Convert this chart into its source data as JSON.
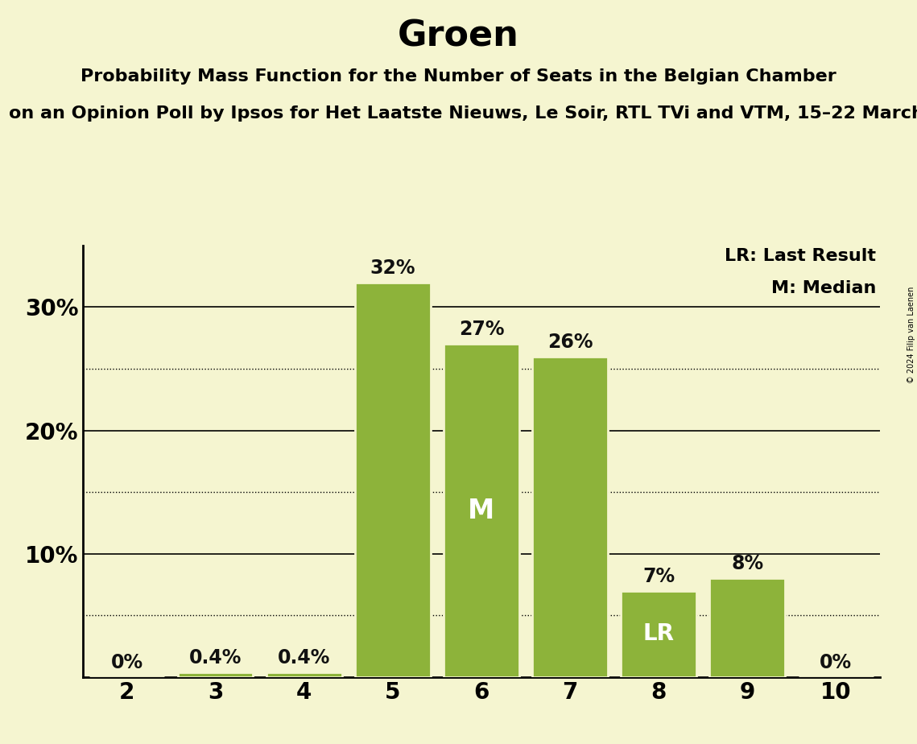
{
  "title": "Groen",
  "subtitle1": "Probability Mass Function for the Number of Seats in the Belgian Chamber",
  "subtitle2": "on an Opinion Poll by Ipsos for Het Laatste Nieuws, Le Soir, RTL TVi and VTM, 15–22 March",
  "copyright": "© 2024 Filip van Laenen",
  "categories": [
    2,
    3,
    4,
    5,
    6,
    7,
    8,
    9,
    10
  ],
  "values": [
    0.0,
    0.4,
    0.4,
    32.0,
    27.0,
    26.0,
    7.0,
    8.0,
    0.0
  ],
  "bar_color": "#8db33a",
  "background_color": "#f5f5d0",
  "label_color_dark": "#111111",
  "label_color_white": "#ffffff",
  "median_bar": 6,
  "lr_bar": 8,
  "legend_lr": "LR: Last Result",
  "legend_m": "M: Median",
  "ylim": [
    0,
    35
  ],
  "solid_lines": [
    10,
    20,
    30
  ],
  "dotted_lines": [
    5,
    15,
    25
  ],
  "bar_width": 0.85,
  "title_fontsize": 32,
  "subtitle_fontsize": 16,
  "tick_fontsize": 20,
  "label_fontsize": 17,
  "legend_fontsize": 16,
  "M_fontsize": 24,
  "LR_fontsize": 20
}
